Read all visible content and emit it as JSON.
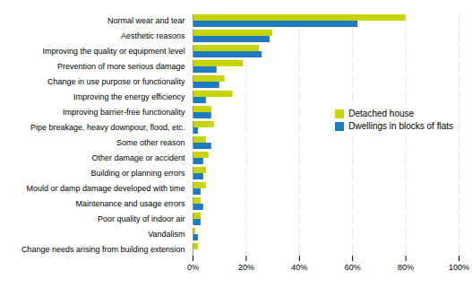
{
  "chart_data": {
    "type": "bar",
    "orientation": "horizontal",
    "categories": [
      "Normal wear and tear",
      "Aesthetic reasons",
      "Improving the quality or equipment level",
      "Prevention of more serious damage",
      "Change in use purpose or functionality",
      "Improving the energy efficiency",
      "Improving barrier-free functionality",
      "Pipe breakage, heavy downpour, flood, etc.",
      "Some other reason",
      "Other damage or accident",
      "Building or planning errors",
      "Mould or damp damage developed with time",
      "Maintenance and usage errors",
      "Poor quality of indoor air",
      "Vandalism",
      "Change needs arising from building extension"
    ],
    "series": [
      {
        "name": "Detached house",
        "color": "#c8d400",
        "values": [
          80,
          30,
          25,
          19,
          12,
          15,
          7,
          8,
          5,
          6,
          5,
          5,
          3,
          3,
          1,
          2
        ]
      },
      {
        "name": "Dwellings in blocks of flats",
        "color": "#1f7abf",
        "values": [
          62,
          29,
          26,
          9,
          10,
          5,
          7,
          2,
          7,
          4,
          4,
          3,
          4,
          3,
          2,
          0
        ]
      }
    ],
    "xlim": [
      0,
      100
    ],
    "xticks": [
      {
        "value": 0,
        "label": "0%"
      },
      {
        "value": 20,
        "label": "20%"
      },
      {
        "value": 40,
        "label": "40%"
      },
      {
        "value": 60,
        "label": "60%"
      },
      {
        "value": 80,
        "label": "80%"
      },
      {
        "value": 100,
        "label": "100%"
      }
    ],
    "grid": true,
    "legend": "upper right"
  }
}
